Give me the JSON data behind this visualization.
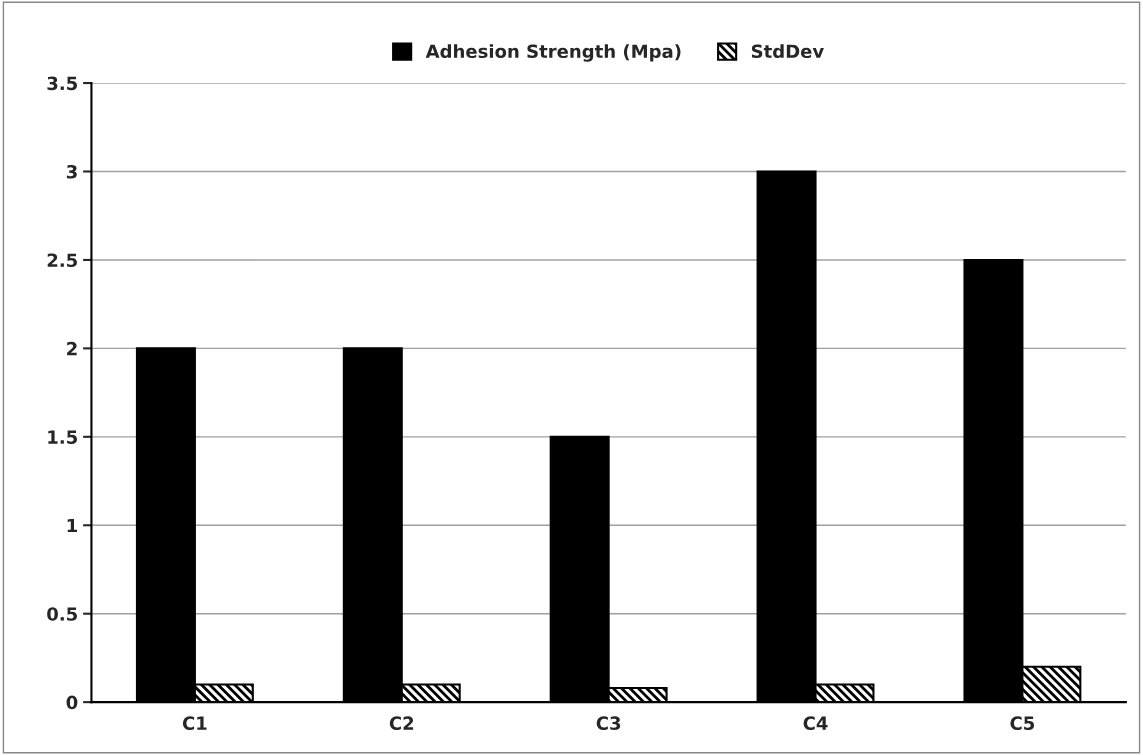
{
  "chart_data": {
    "type": "bar",
    "categories": [
      "C1",
      "C2",
      "C3",
      "C4",
      "C5"
    ],
    "series": [
      {
        "name": "Adhesion Strength (Mpa)",
        "color": "#000000",
        "values": [
          2,
          2,
          1.5,
          3,
          2.5
        ]
      },
      {
        "name": "StdDev",
        "color": "#000000",
        "values": [
          0.1,
          0.1,
          0.08,
          0.1,
          0.2
        ]
      }
    ],
    "ylim": [
      0,
      3.5
    ],
    "yticks": [
      0,
      0.5,
      1,
      1.5,
      2,
      2.5,
      3,
      3.5
    ],
    "grid": "y",
    "legend": "top"
  }
}
